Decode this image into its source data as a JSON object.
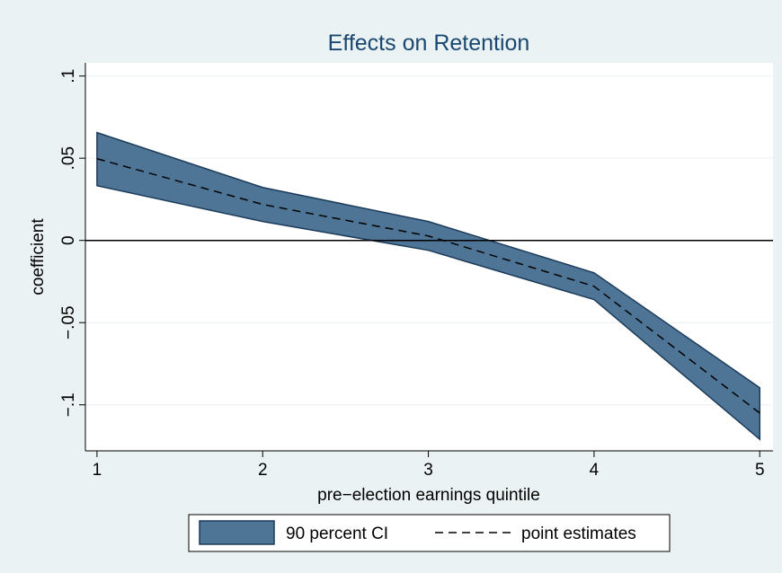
{
  "chart_data": {
    "type": "band-line",
    "title": "Effects on Retention",
    "x_label": "pre−election earnings quintile",
    "y_label": "coefficient",
    "x": [
      1,
      2,
      3,
      4,
      5
    ],
    "series": [
      {
        "name": "90 percent CI",
        "color": "#4e7596",
        "edge_color": "#1c3b5a",
        "upper": [
          0.0656,
          0.0322,
          0.0115,
          -0.0197,
          -0.0896
        ],
        "lower": [
          0.0333,
          0.0115,
          -0.006,
          -0.036,
          -0.121
        ]
      },
      {
        "name": "point estimates",
        "color": "#000000",
        "values": [
          0.0497,
          0.0219,
          0.0027,
          -0.0279,
          -0.105
        ]
      }
    ],
    "xlim": [
      0.93,
      5.08
    ],
    "ylim": [
      -0.128,
      0.108
    ],
    "xticks": [
      1,
      2,
      3,
      4,
      5
    ],
    "yticks": [
      {
        "value": -0.1,
        "label": "−.1"
      },
      {
        "value": -0.05,
        "label": "−.05"
      },
      0,
      {
        "value": 0.05,
        "label": ".05"
      },
      {
        "value": 0.1,
        "label": ".1"
      }
    ],
    "reference_line": 0,
    "grid": true
  }
}
